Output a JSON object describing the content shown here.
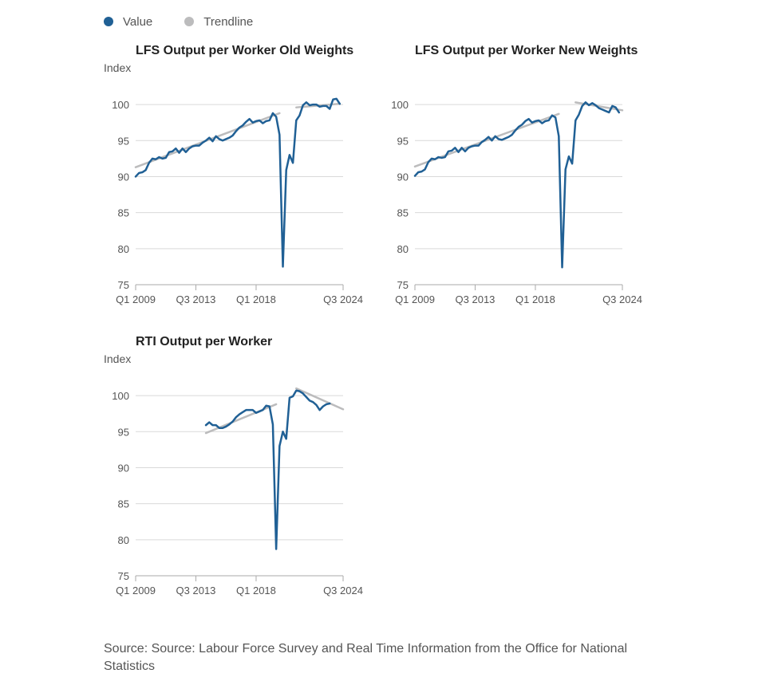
{
  "legend": [
    {
      "label": "Value",
      "color": "#206095"
    },
    {
      "label": "Trendline",
      "color": "#bcbcbd"
    }
  ],
  "source": "Source: Source: Labour Force Survey and Real Time Information from the Office for National Statistics",
  "chart_data": [
    {
      "type": "line",
      "title": "LFS Output per Worker Old Weights",
      "ylabel": "Index",
      "xlabel": "",
      "ylim": [
        75,
        102
      ],
      "yticks": [
        75,
        80,
        85,
        90,
        95,
        100
      ],
      "x_start": "Q1 2009",
      "x_end": "Q3 2024",
      "x_ticks": [
        "Q1 2009",
        "Q3 2013",
        "Q1 2018",
        "Q3 2024"
      ],
      "x_tick_positions": [
        0,
        18,
        36,
        62
      ],
      "grid": true,
      "series": [
        {
          "name": "Value",
          "color": "#206095",
          "values": [
            90.0,
            90.5,
            90.6,
            90.9,
            91.9,
            92.5,
            92.4,
            92.7,
            92.5,
            92.6,
            93.4,
            93.5,
            93.9,
            93.3,
            93.9,
            93.4,
            93.9,
            94.2,
            94.3,
            94.3,
            94.7,
            95.0,
            95.4,
            94.9,
            95.6,
            95.2,
            95.0,
            95.2,
            95.4,
            95.7,
            96.3,
            96.8,
            97.1,
            97.6,
            98.0,
            97.5,
            97.7,
            97.8,
            97.4,
            97.7,
            97.8,
            98.8,
            98.3,
            95.8,
            77.5,
            90.9,
            93.0,
            91.9,
            97.8,
            98.5,
            99.9,
            100.3,
            99.9,
            100.0,
            100.0,
            99.7,
            99.8,
            99.8,
            99.4,
            100.7,
            100.8,
            100.1
          ]
        },
        {
          "name": "Trendline",
          "color": "#bcbcbd",
          "segments": [
            [
              0,
              91.3,
              43,
              98.8
            ],
            [
              48,
              99.6,
              61,
              100.1
            ]
          ]
        }
      ]
    },
    {
      "type": "line",
      "title": "LFS Output per Worker New Weights",
      "ylabel": "",
      "xlabel": "",
      "ylim": [
        75,
        102
      ],
      "yticks": [
        75,
        80,
        85,
        90,
        95,
        100
      ],
      "x_start": "Q1 2009",
      "x_end": "Q3 2024",
      "x_ticks": [
        "Q1 2009",
        "Q3 2013",
        "Q1 2018",
        "Q3 2024"
      ],
      "x_tick_positions": [
        0,
        18,
        36,
        62
      ],
      "grid": true,
      "series": [
        {
          "name": "Value",
          "color": "#206095",
          "values": [
            90.1,
            90.6,
            90.7,
            91.0,
            92.0,
            92.5,
            92.4,
            92.7,
            92.6,
            92.7,
            93.5,
            93.6,
            94.0,
            93.4,
            94.0,
            93.5,
            94.0,
            94.2,
            94.3,
            94.3,
            94.8,
            95.1,
            95.5,
            95.0,
            95.6,
            95.2,
            95.1,
            95.3,
            95.5,
            95.8,
            96.4,
            96.9,
            97.2,
            97.7,
            98.0,
            97.5,
            97.7,
            97.8,
            97.4,
            97.7,
            97.8,
            98.5,
            98.2,
            95.6,
            77.4,
            91.0,
            92.8,
            91.8,
            97.8,
            98.6,
            99.8,
            100.3,
            99.9,
            100.2,
            99.9,
            99.5,
            99.3,
            99.1,
            98.9,
            99.8,
            99.6,
            98.9
          ]
        },
        {
          "name": "Trendline",
          "color": "#bcbcbd",
          "segments": [
            [
              0,
              91.4,
              43,
              98.7
            ],
            [
              48,
              100.3,
              62,
              99.2
            ]
          ]
        }
      ]
    },
    {
      "type": "line",
      "title": "RTI Output per Worker",
      "ylabel": "Index",
      "xlabel": "",
      "ylim": [
        75,
        102
      ],
      "yticks": [
        75,
        80,
        85,
        90,
        95,
        100
      ],
      "x_start": "Q1 2009",
      "x_end": "Q3 2024",
      "x_ticks": [
        "Q1 2009",
        "Q3 2013",
        "Q1 2018",
        "Q3 2024"
      ],
      "x_tick_positions": [
        0,
        18,
        36,
        62
      ],
      "grid": true,
      "series": [
        {
          "name": "Value",
          "color": "#206095",
          "x_offset": 21,
          "values": [
            95.9,
            96.3,
            95.9,
            95.9,
            95.5,
            95.5,
            95.7,
            96.0,
            96.4,
            97.0,
            97.4,
            97.7,
            98.0,
            98.0,
            98.0,
            97.6,
            97.8,
            98.0,
            98.6,
            98.5,
            96.0,
            78.7,
            93.0,
            95.0,
            94.0,
            99.7,
            99.9,
            100.7,
            100.6,
            100.3,
            99.8,
            99.3,
            99.1,
            98.7,
            98.0,
            98.5,
            98.8,
            98.9
          ]
        },
        {
          "name": "Trendline",
          "color": "#bcbcbd",
          "segments": [
            [
              21,
              94.8,
              42,
              98.8
            ],
            [
              48,
              101.0,
              62,
              98.1
            ]
          ]
        }
      ]
    }
  ]
}
